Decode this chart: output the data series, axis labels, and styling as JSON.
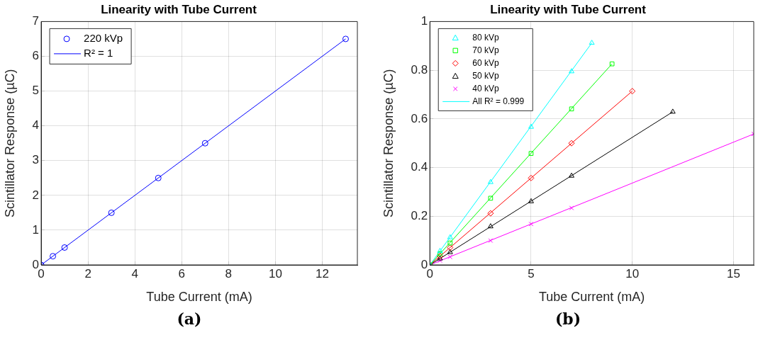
{
  "chart_data": [
    {
      "type": "scatter",
      "title": "Linearity with Tube Current",
      "xlabel": "Tube Current (mA)",
      "ylabel": "Scintillator Response (µC)",
      "xlim": [
        0,
        13.5
      ],
      "xticks": [
        0,
        2,
        4,
        6,
        8,
        10,
        12
      ],
      "ylim": [
        0,
        7
      ],
      "yticks": [
        0,
        1,
        2,
        3,
        4,
        5,
        6,
        7
      ],
      "grid": true,
      "legend": "top left",
      "annotations": [
        "(a)"
      ],
      "series": [
        {
          "name": "220 kVp",
          "type": "scatter",
          "marker": "circle",
          "color": "#0000ff",
          "x": [
            0,
            0.5,
            1,
            3,
            5,
            7,
            13
          ],
          "values": [
            0,
            0.25,
            0.5,
            1.5,
            2.5,
            3.5,
            6.5
          ]
        },
        {
          "name": "R² = 1",
          "type": "line",
          "marker": "none",
          "color": "#0000ff",
          "x": [
            0,
            13
          ],
          "values": [
            0,
            6.5
          ]
        }
      ]
    },
    {
      "type": "scatter",
      "title": "Linearity with Tube Current",
      "xlabel": "Tube Current (mA)",
      "ylabel": "Scintillator Response (µC)",
      "xlim": [
        0,
        16
      ],
      "xticks": [
        0,
        5,
        10,
        15
      ],
      "ylim": [
        0,
        1
      ],
      "yticks": [
        0,
        0.2,
        0.4,
        0.6,
        0.8,
        1
      ],
      "grid": true,
      "legend": "top left",
      "annotations": [
        "(b)"
      ],
      "series": [
        {
          "name": "80 kVp",
          "type": "scatter",
          "marker": "triangle",
          "color": "#00ffff",
          "x": [
            0,
            0.5,
            1,
            3,
            5,
            7,
            8
          ],
          "values": [
            0,
            0.057,
            0.113,
            0.34,
            0.567,
            0.795,
            0.912
          ]
        },
        {
          "name": "70 kVp",
          "type": "scatter",
          "marker": "square",
          "color": "#00ff00",
          "x": [
            0,
            0.5,
            1,
            3,
            5,
            7,
            9
          ],
          "values": [
            0,
            0.046,
            0.09,
            0.274,
            0.458,
            0.641,
            0.826
          ]
        },
        {
          "name": "60 kVp",
          "type": "scatter",
          "marker": "diamond",
          "color": "#ff0000",
          "x": [
            0,
            0.5,
            1,
            3,
            5,
            7,
            10
          ],
          "values": [
            0,
            0.036,
            0.071,
            0.212,
            0.357,
            0.5,
            0.714
          ]
        },
        {
          "name": "50 kVp",
          "type": "scatter",
          "marker": "triangle",
          "color": "#000000",
          "x": [
            0,
            0.5,
            1,
            3,
            5,
            7,
            12
          ],
          "values": [
            0,
            0.026,
            0.052,
            0.158,
            0.261,
            0.366,
            0.629
          ]
        },
        {
          "name": "40 kVp",
          "type": "scatter",
          "marker": "cross",
          "color": "#ff00ff",
          "x": [
            0,
            0.5,
            1,
            3,
            5,
            7,
            16
          ],
          "values": [
            0,
            0.018,
            0.033,
            0.1,
            0.168,
            0.234,
            0.538
          ]
        },
        {
          "name": "All R² = 0.999",
          "type": "line",
          "marker": "none",
          "color": "#00ffff",
          "x": [
            0,
            8
          ],
          "values": [
            0,
            0.912
          ]
        },
        {
          "type": "line",
          "marker": "none",
          "color": "#00ff00",
          "x": [
            0,
            9
          ],
          "values": [
            0,
            0.826
          ]
        },
        {
          "type": "line",
          "marker": "none",
          "color": "#ff0000",
          "x": [
            0,
            10
          ],
          "values": [
            0,
            0.714
          ]
        },
        {
          "type": "line",
          "marker": "none",
          "color": "#000000",
          "x": [
            0,
            12
          ],
          "values": [
            0,
            0.629
          ]
        },
        {
          "type": "line",
          "marker": "none",
          "color": "#ff00ff",
          "x": [
            0,
            16
          ],
          "values": [
            0,
            0.538
          ]
        }
      ]
    }
  ]
}
